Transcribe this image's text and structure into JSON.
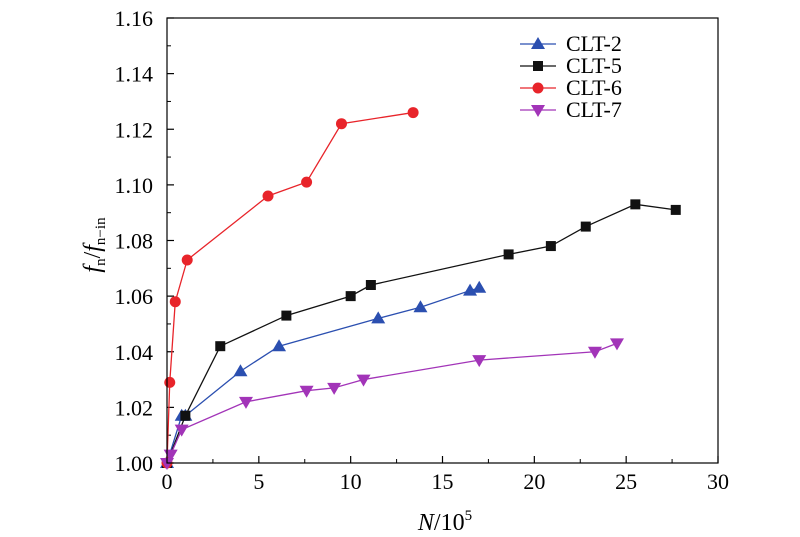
{
  "chart_data": {
    "type": "line",
    "xlabel_var": "N",
    "xlabel_unit": "/10",
    "xlabel_exp": "5",
    "ylabel_f1": "f",
    "ylabel_sub1": "n",
    "ylabel_slash": "/",
    "ylabel_f2": "f",
    "ylabel_sub2": "n−in",
    "xlim": [
      0,
      30
    ],
    "ylim": [
      1.0,
      1.16
    ],
    "xticks": [
      0,
      5,
      10,
      15,
      20,
      25,
      30
    ],
    "xtick_labels": [
      "0",
      "5",
      "10",
      "15",
      "20",
      "25",
      "30"
    ],
    "yticks": [
      1.0,
      1.02,
      1.04,
      1.06,
      1.08,
      1.1,
      1.12,
      1.14,
      1.16
    ],
    "ytick_labels": [
      "1.00",
      "1.02",
      "1.04",
      "1.06",
      "1.08",
      "1.10",
      "1.12",
      "1.14",
      "1.16"
    ],
    "grid": false,
    "legend_position": "top-right",
    "series": [
      {
        "name": "CLT-2",
        "color": "#2b4fb0",
        "marker": "triangle-up",
        "x": [
          0,
          0.8,
          1.0,
          4.0,
          6.1,
          11.5,
          13.8,
          16.5,
          17.0
        ],
        "y": [
          1.0,
          1.017,
          1.017,
          1.033,
          1.042,
          1.052,
          1.056,
          1.062,
          1.063
        ]
      },
      {
        "name": "CLT-5",
        "color": "#111111",
        "marker": "square",
        "x": [
          0,
          1.0,
          2.9,
          6.5,
          10.0,
          11.1,
          18.6,
          20.9,
          22.8,
          25.5,
          27.7
        ],
        "y": [
          1.0,
          1.017,
          1.042,
          1.053,
          1.06,
          1.064,
          1.075,
          1.078,
          1.085,
          1.093,
          1.091
        ]
      },
      {
        "name": "CLT-6",
        "color": "#e8242a",
        "marker": "circle",
        "x": [
          0,
          0.15,
          0.45,
          1.1,
          5.5,
          7.6,
          9.5,
          13.4
        ],
        "y": [
          1.0,
          1.029,
          1.058,
          1.073,
          1.096,
          1.101,
          1.122,
          1.126
        ]
      },
      {
        "name": "CLT-7",
        "color": "#a234b8",
        "marker": "triangle-down",
        "x": [
          0,
          0.2,
          0.8,
          4.3,
          7.6,
          9.1,
          10.7,
          17.0,
          23.3,
          24.5
        ],
        "y": [
          1.0,
          1.003,
          1.012,
          1.022,
          1.026,
          1.027,
          1.03,
          1.037,
          1.04,
          1.043
        ]
      }
    ]
  }
}
